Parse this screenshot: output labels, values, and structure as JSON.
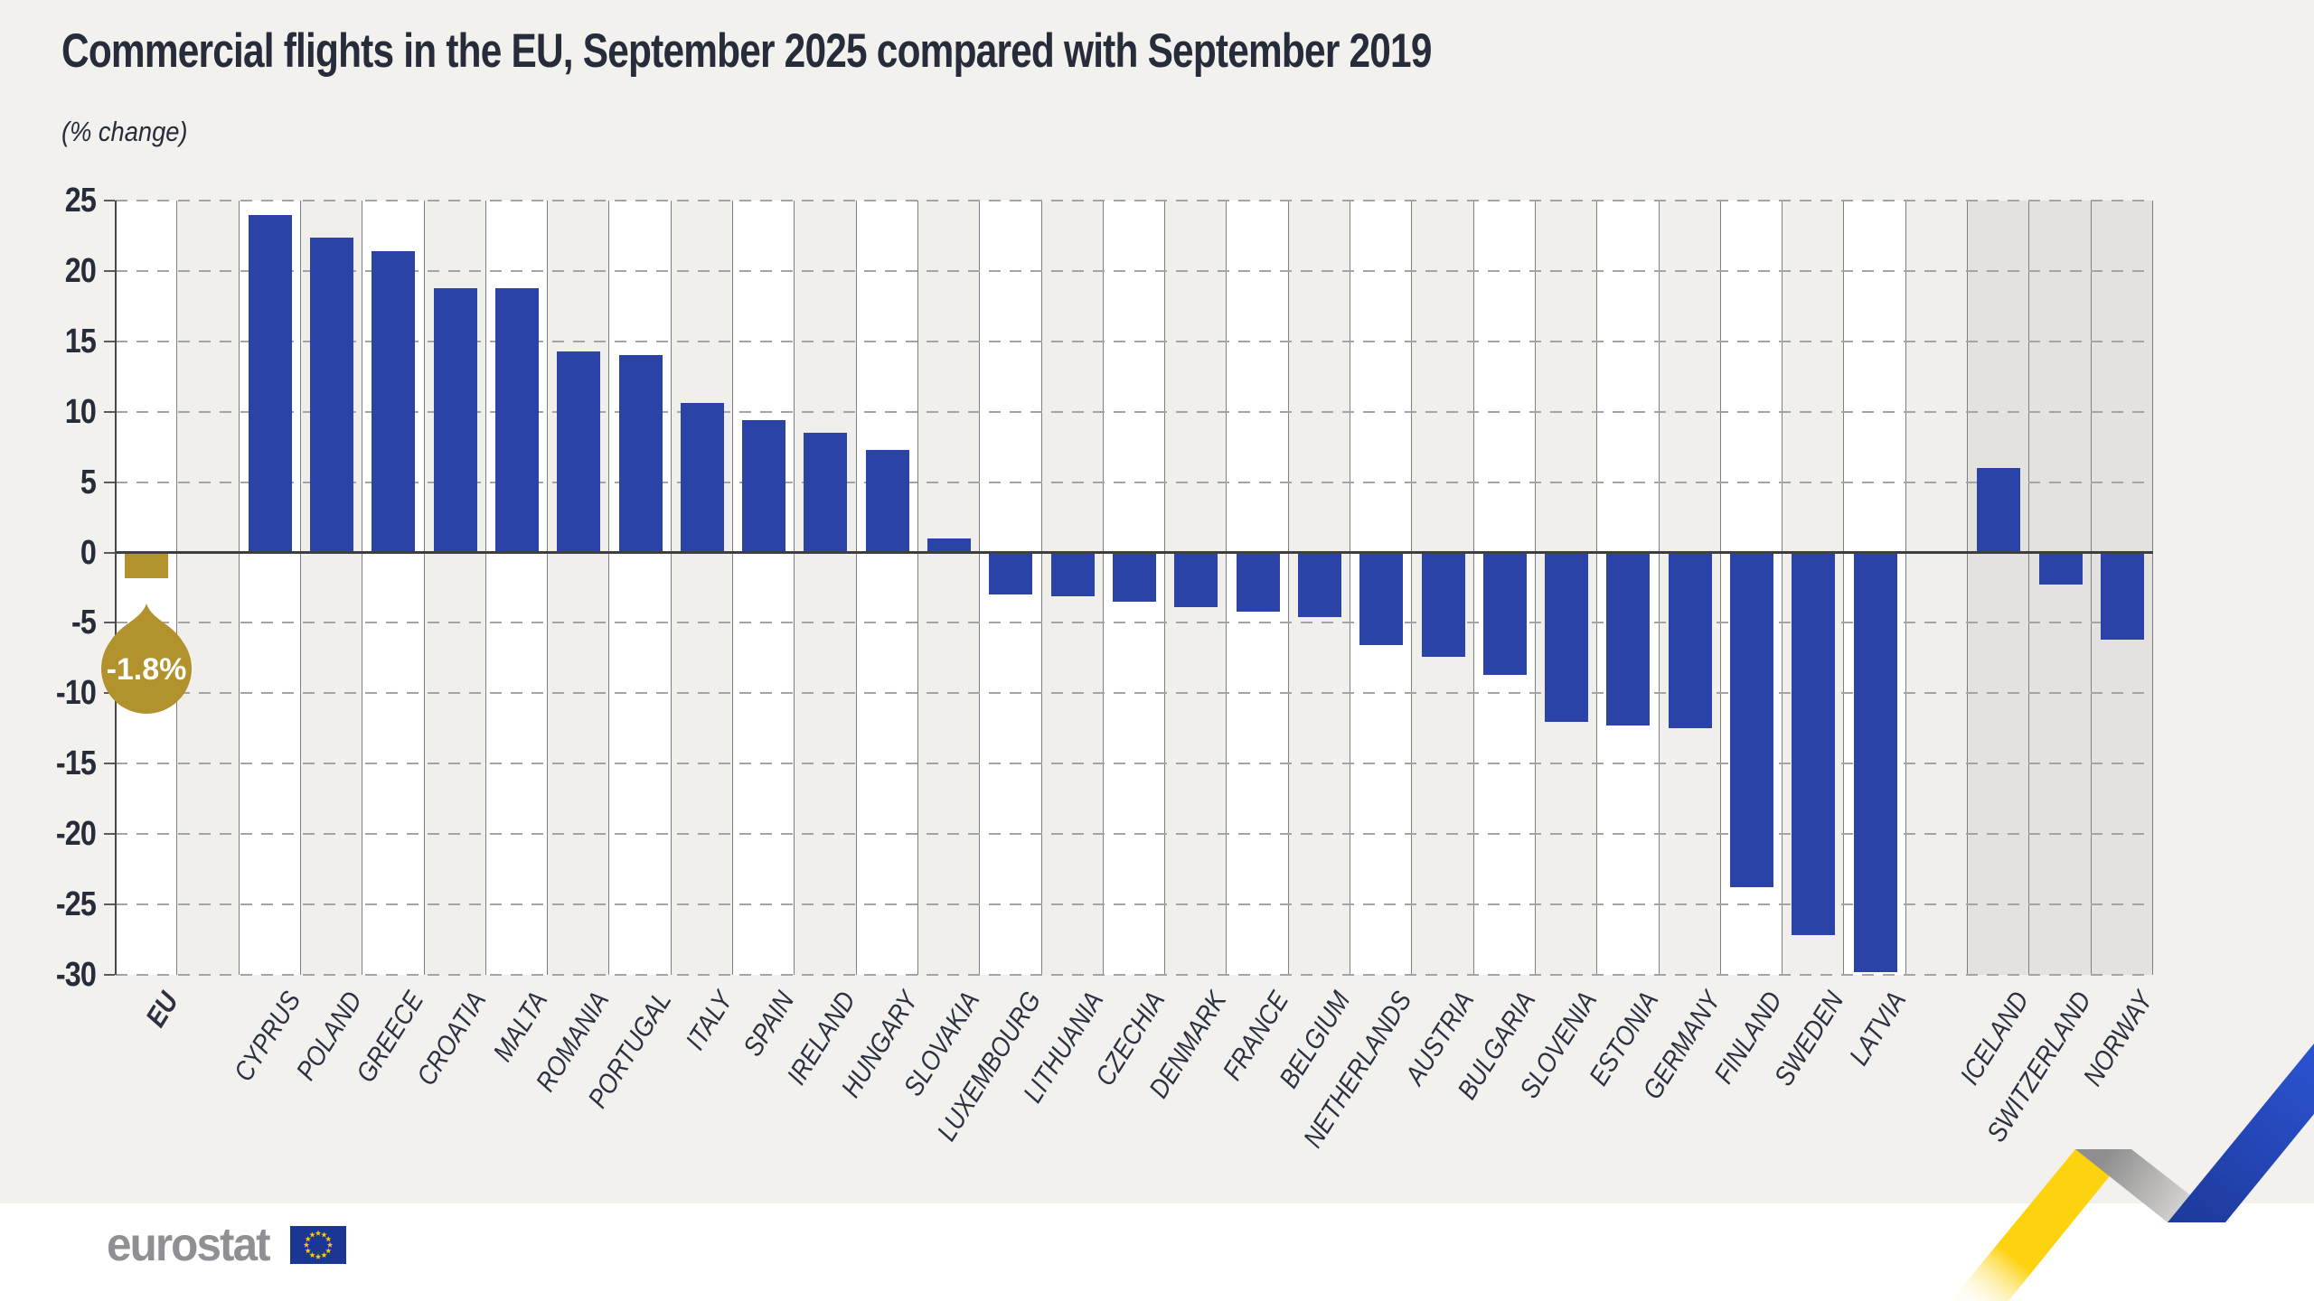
{
  "title": "Commercial flights in the EU, September 2025 compared with September 2019",
  "subtitle": "(% change)",
  "footer": {
    "logo_text": "eurostat"
  },
  "colors": {
    "figure_bg": "#f2f1ee",
    "footer_bg": "#ffffff",
    "bar_blue": "#2b43a7",
    "eu_gold": "#b2922c",
    "stripe_white": "#ffffff",
    "stripe_gray": "#f0efec",
    "efta_band": "#e4e2df",
    "text_dark": "#262c3a",
    "logo_gray": "#8e9094",
    "flag_blue": "#1c3693",
    "flag_star_yellow": "#ffcc00",
    "ribbon_yellow": "#fdd20e",
    "ribbon_blue": "#2447c2",
    "ribbon_gray": "#9a9a9a"
  },
  "chart_data": {
    "type": "bar",
    "title": "Commercial flights in the EU, September 2025 compared with September 2019",
    "subtitle": "(% change)",
    "xlabel": "",
    "ylabel": "% change",
    "ylim": [
      -30,
      25
    ],
    "grid": "horizontal-dashed",
    "legend": "none",
    "y_ticks": [
      25,
      20,
      15,
      10,
      5,
      0,
      -5,
      -10,
      -15,
      -20,
      -25,
      -30
    ],
    "eu_callout_label": "-1.8%",
    "columns": [
      {
        "label": "EU",
        "value": -1.8,
        "kind": "eu"
      },
      {
        "label": "",
        "value": null,
        "kind": "gap"
      },
      {
        "label": "CYPRUS",
        "value": 24.0,
        "kind": "member"
      },
      {
        "label": "POLAND",
        "value": 22.4,
        "kind": "member"
      },
      {
        "label": "GREECE",
        "value": 21.4,
        "kind": "member"
      },
      {
        "label": "CROATIA",
        "value": 18.8,
        "kind": "member"
      },
      {
        "label": "MALTA",
        "value": 18.8,
        "kind": "member"
      },
      {
        "label": "ROMANIA",
        "value": 14.3,
        "kind": "member"
      },
      {
        "label": "PORTUGAL",
        "value": 14.0,
        "kind": "member"
      },
      {
        "label": "ITALY",
        "value": 10.6,
        "kind": "member"
      },
      {
        "label": "SPAIN",
        "value": 9.4,
        "kind": "member"
      },
      {
        "label": "IRELAND",
        "value": 8.5,
        "kind": "member"
      },
      {
        "label": "HUNGARY",
        "value": 7.3,
        "kind": "member"
      },
      {
        "label": "SLOVAKIA",
        "value": 1.0,
        "kind": "member"
      },
      {
        "label": "LUXEMBOURG",
        "value": -3.0,
        "kind": "member"
      },
      {
        "label": "LITHUANIA",
        "value": -3.1,
        "kind": "member"
      },
      {
        "label": "CZECHIA",
        "value": -3.5,
        "kind": "member"
      },
      {
        "label": "DENMARK",
        "value": -3.9,
        "kind": "member"
      },
      {
        "label": "FRANCE",
        "value": -4.2,
        "kind": "member"
      },
      {
        "label": "BELGIUM",
        "value": -4.6,
        "kind": "member"
      },
      {
        "label": "NETHERLANDS",
        "value": -6.6,
        "kind": "member"
      },
      {
        "label": "AUSTRIA",
        "value": -7.4,
        "kind": "member"
      },
      {
        "label": "BULGARIA",
        "value": -8.7,
        "kind": "member"
      },
      {
        "label": "SLOVENIA",
        "value": -12.0,
        "kind": "member"
      },
      {
        "label": "ESTONIA",
        "value": -12.3,
        "kind": "member"
      },
      {
        "label": "GERMANY",
        "value": -12.5,
        "kind": "member"
      },
      {
        "label": "FINLAND",
        "value": -23.8,
        "kind": "member"
      },
      {
        "label": "SWEDEN",
        "value": -27.2,
        "kind": "member"
      },
      {
        "label": "LATVIA",
        "value": -29.8,
        "kind": "member"
      },
      {
        "label": "",
        "value": null,
        "kind": "gap"
      },
      {
        "label": "ICELAND",
        "value": 6.0,
        "kind": "efta"
      },
      {
        "label": "SWITZERLAND",
        "value": -2.3,
        "kind": "efta"
      },
      {
        "label": "NORWAY",
        "value": -6.2,
        "kind": "efta"
      }
    ]
  }
}
